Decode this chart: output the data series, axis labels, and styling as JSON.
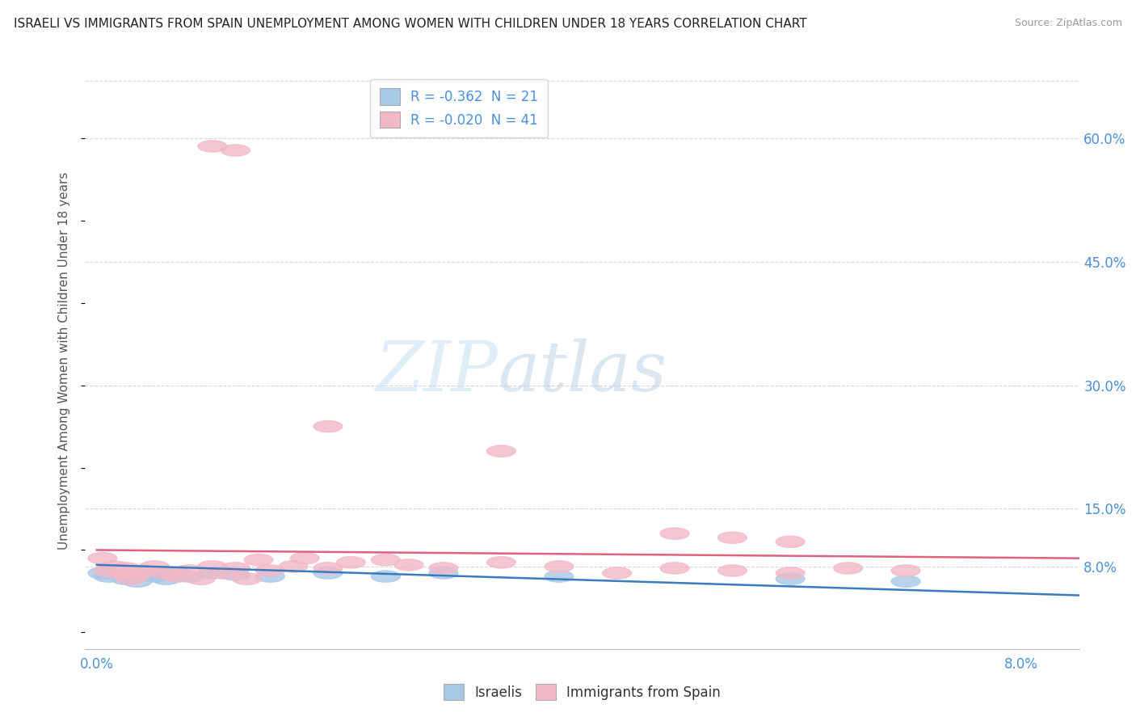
{
  "title": "ISRAELI VS IMMIGRANTS FROM SPAIN UNEMPLOYMENT AMONG WOMEN WITH CHILDREN UNDER 18 YEARS CORRELATION CHART",
  "source": "Source: ZipAtlas.com",
  "ylabel": "Unemployment Among Women with Children Under 18 years",
  "xlim": [
    -0.001,
    0.085
  ],
  "ylim": [
    -0.02,
    0.68
  ],
  "xticks": [
    0.0,
    0.08
  ],
  "xticklabels": [
    "0.0%",
    "8.0%"
  ],
  "yticks_right": [
    0.08,
    0.15,
    0.3,
    0.45,
    0.6
  ],
  "yticklabels_right": [
    "8.0%",
    "15.0%",
    "30.0%",
    "45.0%",
    "60.0%"
  ],
  "legend_r_label1": "R = -0.362  N = 21",
  "legend_r_label2": "R = -0.020  N = 41",
  "legend_bottom_label1": "Israelis",
  "legend_bottom_label2": "Immigrants from Spain",
  "israelis_color": "#a8c8e8",
  "immigrants_color": "#f2b8c6",
  "trendline_israelis_color": "#3a7abf",
  "trendline_immigrants_color": "#e06080",
  "watermark_zip": "ZIP",
  "watermark_atlas": "atlas",
  "background_color": "#ffffff",
  "grid_color": "#d8d8d8",
  "israelis_points": [
    [
      0.0005,
      0.072
    ],
    [
      0.001,
      0.068
    ],
    [
      0.0015,
      0.075
    ],
    [
      0.002,
      0.07
    ],
    [
      0.0025,
      0.065
    ],
    [
      0.003,
      0.068
    ],
    [
      0.0035,
      0.062
    ],
    [
      0.004,
      0.07
    ],
    [
      0.005,
      0.068
    ],
    [
      0.006,
      0.065
    ],
    [
      0.007,
      0.072
    ],
    [
      0.008,
      0.068
    ],
    [
      0.01,
      0.072
    ],
    [
      0.012,
      0.07
    ],
    [
      0.015,
      0.068
    ],
    [
      0.02,
      0.072
    ],
    [
      0.025,
      0.068
    ],
    [
      0.03,
      0.072
    ],
    [
      0.04,
      0.068
    ],
    [
      0.06,
      0.065
    ],
    [
      0.07,
      0.062
    ]
  ],
  "immigrants_points": [
    [
      0.0005,
      0.09
    ],
    [
      0.001,
      0.075
    ],
    [
      0.0015,
      0.08
    ],
    [
      0.002,
      0.072
    ],
    [
      0.0025,
      0.078
    ],
    [
      0.003,
      0.065
    ],
    [
      0.0035,
      0.07
    ],
    [
      0.004,
      0.075
    ],
    [
      0.005,
      0.08
    ],
    [
      0.006,
      0.072
    ],
    [
      0.007,
      0.068
    ],
    [
      0.008,
      0.075
    ],
    [
      0.009,
      0.065
    ],
    [
      0.01,
      0.08
    ],
    [
      0.011,
      0.072
    ],
    [
      0.012,
      0.078
    ],
    [
      0.013,
      0.065
    ],
    [
      0.014,
      0.088
    ],
    [
      0.015,
      0.075
    ],
    [
      0.017,
      0.08
    ],
    [
      0.018,
      0.09
    ],
    [
      0.02,
      0.078
    ],
    [
      0.022,
      0.085
    ],
    [
      0.025,
      0.088
    ],
    [
      0.027,
      0.082
    ],
    [
      0.03,
      0.078
    ],
    [
      0.035,
      0.085
    ],
    [
      0.04,
      0.08
    ],
    [
      0.01,
      0.59
    ],
    [
      0.012,
      0.585
    ],
    [
      0.02,
      0.25
    ],
    [
      0.035,
      0.22
    ],
    [
      0.045,
      0.072
    ],
    [
      0.05,
      0.078
    ],
    [
      0.055,
      0.075
    ],
    [
      0.06,
      0.072
    ],
    [
      0.065,
      0.078
    ],
    [
      0.07,
      0.075
    ],
    [
      0.05,
      0.12
    ],
    [
      0.055,
      0.115
    ],
    [
      0.06,
      0.11
    ]
  ]
}
